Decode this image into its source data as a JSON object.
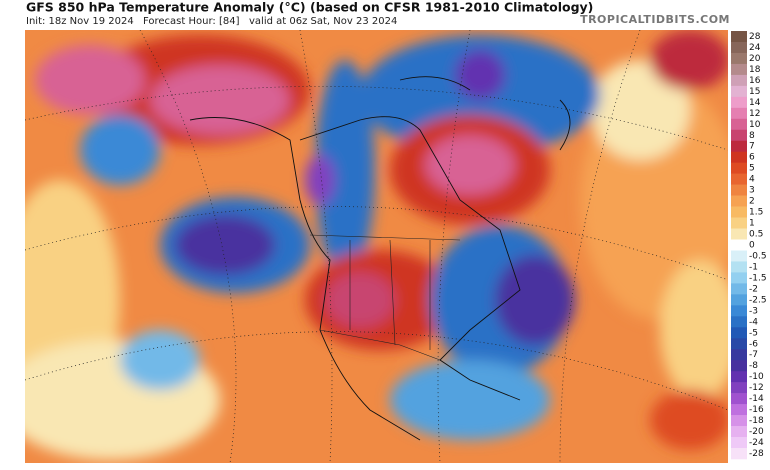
{
  "header": {
    "title": "GFS 850 hPa Temperature Anomaly (°C) (based on CFSR 1981-2010 Climatology)",
    "init": "Init: 18z Nov 19 2024",
    "forecast_hour": "Forecast Hour: [84]",
    "valid": "valid at 06z Sat, Nov 23 2024"
  },
  "watermark": "TROPICALTIDBITS.COM",
  "legend": {
    "labels": [
      "28",
      "24",
      "20",
      "18",
      "16",
      "15",
      "14",
      "12",
      "10",
      "8",
      "7",
      "6",
      "5",
      "4",
      "3",
      "2",
      "1.5",
      "1",
      "0.5",
      "0",
      "-0.5",
      "-1",
      "-1.5",
      "-2",
      "-2.5",
      "-3",
      "-4",
      "-5",
      "-6",
      "-7",
      "-8",
      "-10",
      "-12",
      "-14",
      "-16",
      "-18",
      "-20",
      "-24",
      "-28"
    ],
    "colors": [
      "#765545",
      "#87665a",
      "#9a786c",
      "#b48a8c",
      "#cfa0b6",
      "#e3b2d2",
      "#ee9dca",
      "#e57fb1",
      "#d86294",
      "#c8446f",
      "#bd2a3e",
      "#cf3520",
      "#de4b22",
      "#e8652f",
      "#ef8440",
      "#f6a252",
      "#f8ba63",
      "#f9d183",
      "#f9e7b3",
      "#ffffff",
      "#d9f0f8",
      "#b3e1f2",
      "#93d0f0",
      "#72b9e8",
      "#53a2df",
      "#3a89d6",
      "#2a71c6",
      "#2159b6",
      "#2849a7",
      "#37399f",
      "#48309f",
      "#6231b0",
      "#8141bf",
      "#a052cf",
      "#bf70df",
      "#d691e8",
      "#e6b1f0",
      "#efc9f7",
      "#f7e1f8"
    ]
  }
}
